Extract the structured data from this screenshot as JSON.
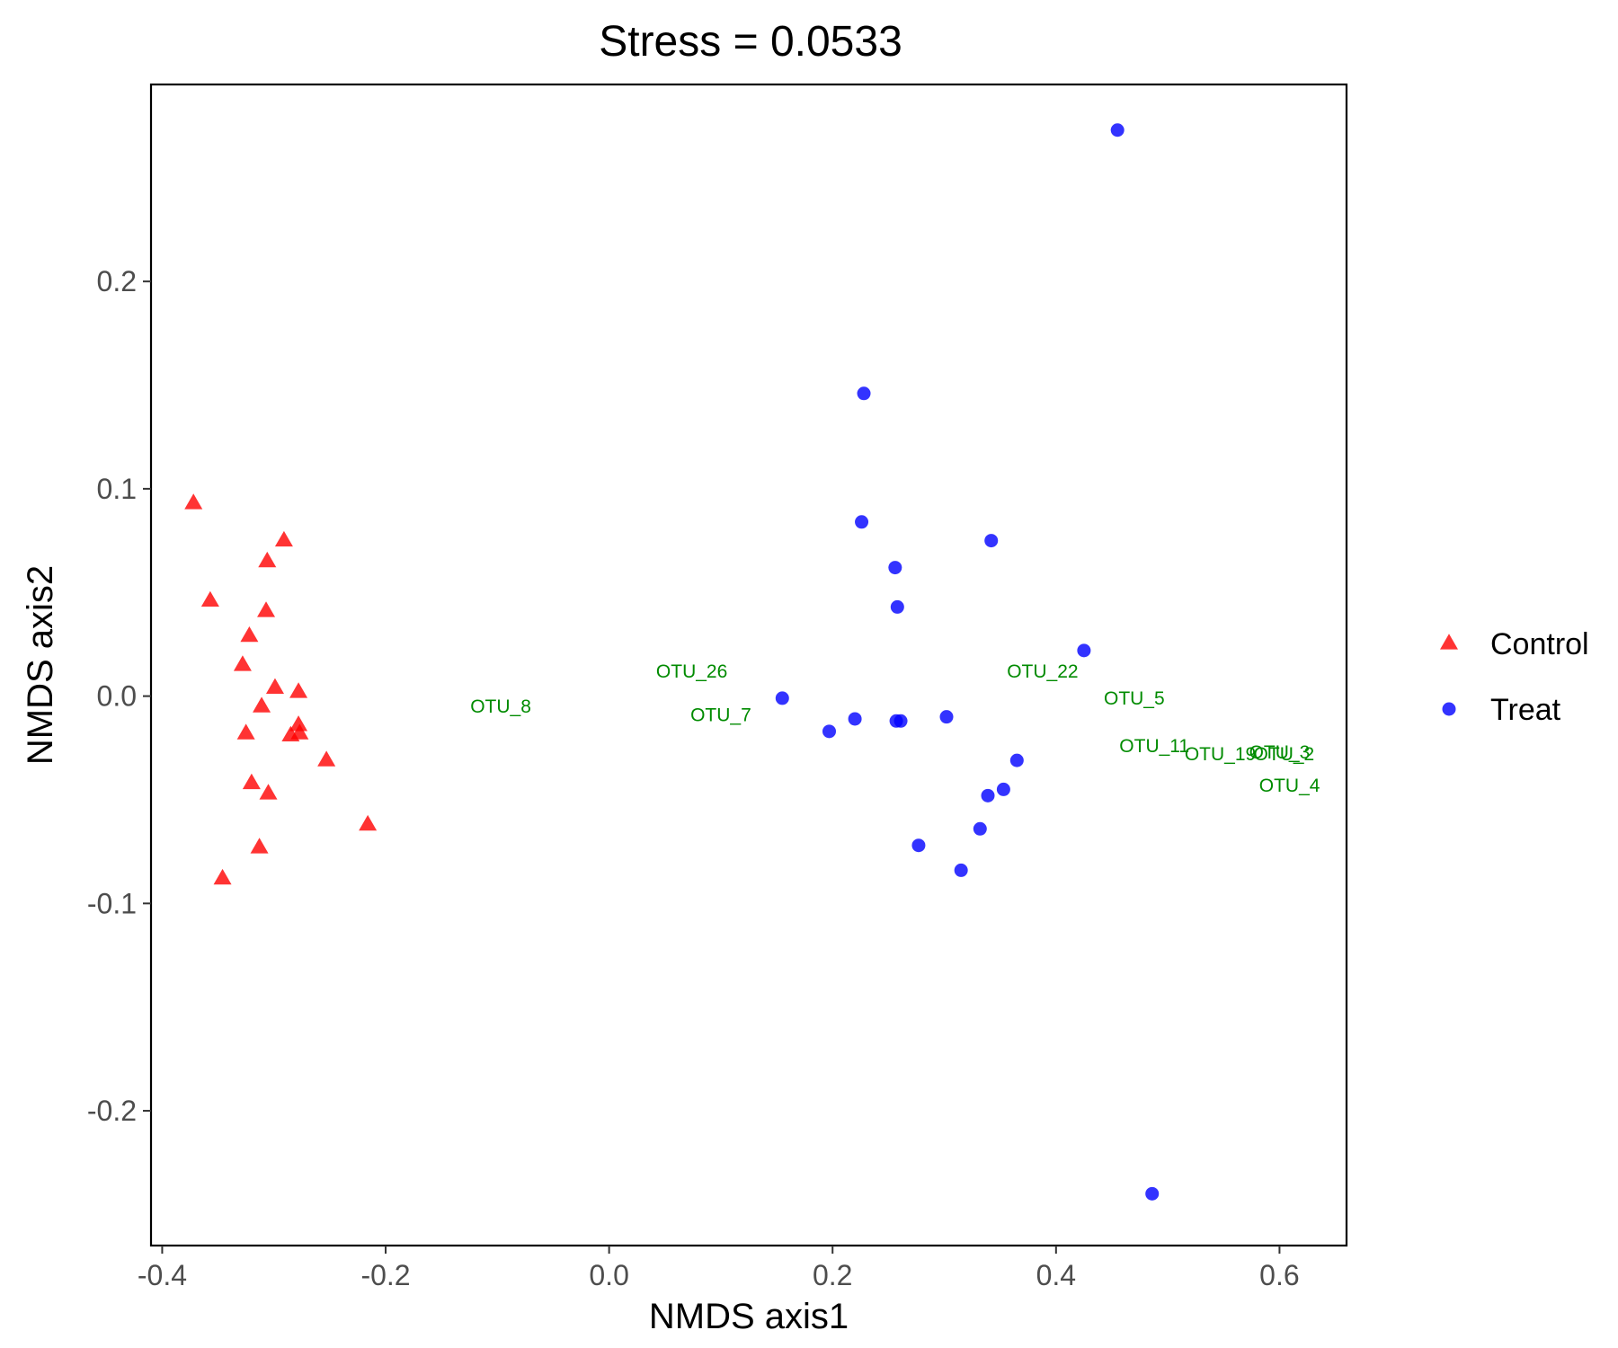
{
  "chart_data": {
    "type": "scatter",
    "title": "Stress = 0.0533",
    "xlabel": "NMDS axis1",
    "ylabel": "NMDS axis2",
    "xlim": [
      -0.41,
      0.66
    ],
    "ylim": [
      -0.265,
      0.295
    ],
    "xticks": [
      -0.4,
      -0.2,
      0.0,
      0.2,
      0.4,
      0.6
    ],
    "xtick_labels": [
      "-0.4",
      "-0.2",
      "0.0",
      "0.2",
      "0.4",
      "0.6"
    ],
    "yticks": [
      -0.2,
      -0.1,
      0.0,
      0.1,
      0.2
    ],
    "ytick_labels": [
      "-0.2",
      "-0.1",
      "0.0",
      "0.1",
      "0.2"
    ],
    "grid": false,
    "legend_position": "right",
    "series": [
      {
        "name": "Control",
        "marker": "triangle",
        "color": "#ff0000",
        "points": [
          [
            -0.372,
            0.093
          ],
          [
            -0.357,
            0.046
          ],
          [
            -0.346,
            -0.088
          ],
          [
            -0.328,
            0.015
          ],
          [
            -0.325,
            -0.018
          ],
          [
            -0.322,
            0.029
          ],
          [
            -0.32,
            -0.042
          ],
          [
            -0.313,
            -0.073
          ],
          [
            -0.311,
            -0.005
          ],
          [
            -0.307,
            0.041
          ],
          [
            -0.306,
            0.065
          ],
          [
            -0.305,
            -0.047
          ],
          [
            -0.299,
            0.004
          ],
          [
            -0.291,
            0.075
          ],
          [
            -0.285,
            -0.019
          ],
          [
            -0.278,
            0.002
          ],
          [
            -0.278,
            -0.014
          ],
          [
            -0.277,
            -0.018
          ],
          [
            -0.253,
            -0.031
          ],
          [
            -0.216,
            -0.062
          ]
        ]
      },
      {
        "name": "Treat",
        "marker": "circle",
        "color": "#0000ff",
        "points": [
          [
            0.155,
            -0.001
          ],
          [
            0.197,
            -0.017
          ],
          [
            0.22,
            -0.011
          ],
          [
            0.226,
            0.084
          ],
          [
            0.228,
            0.146
          ],
          [
            0.256,
            0.062
          ],
          [
            0.257,
            -0.012
          ],
          [
            0.258,
            0.043
          ],
          [
            0.261,
            -0.012
          ],
          [
            0.277,
            -0.072
          ],
          [
            0.302,
            -0.01
          ],
          [
            0.315,
            -0.084
          ],
          [
            0.332,
            -0.064
          ],
          [
            0.339,
            -0.048
          ],
          [
            0.342,
            0.075
          ],
          [
            0.353,
            -0.045
          ],
          [
            0.365,
            -0.031
          ],
          [
            0.425,
            0.022
          ],
          [
            0.455,
            0.273
          ],
          [
            0.486,
            -0.24
          ]
        ]
      }
    ],
    "annotations": {
      "color": "#008b00",
      "labels": [
        {
          "text": "OTU_8",
          "x": -0.097,
          "y": -0.005
        },
        {
          "text": "OTU_26",
          "x": 0.074,
          "y": 0.012
        },
        {
          "text": "OTU_7",
          "x": 0.1,
          "y": -0.009
        },
        {
          "text": "OTU_22",
          "x": 0.388,
          "y": 0.012
        },
        {
          "text": "OTU_5",
          "x": 0.47,
          "y": -0.001
        },
        {
          "text": "OTU_11",
          "x": 0.488,
          "y": -0.024
        },
        {
          "text": "OTU_19",
          "x": 0.547,
          "y": -0.028
        },
        {
          "text": "OTU_3",
          "x": 0.6,
          "y": -0.027
        },
        {
          "text": "OTU_2",
          "x": 0.604,
          "y": -0.028
        },
        {
          "text": "OTU_4",
          "x": 0.609,
          "y": -0.043
        }
      ]
    }
  }
}
